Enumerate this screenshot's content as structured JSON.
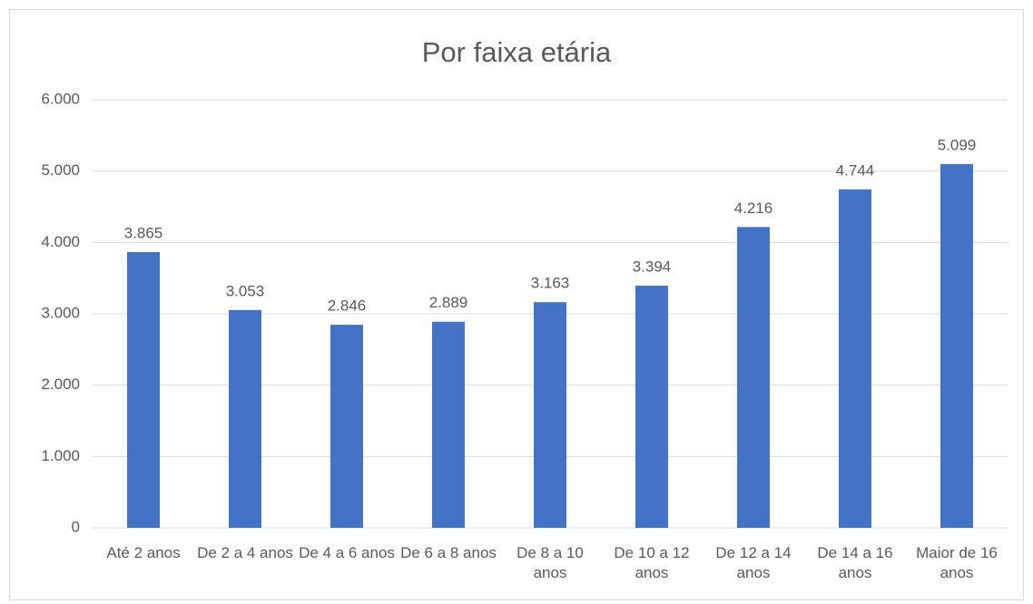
{
  "chart_data": {
    "type": "bar",
    "title": "Por faixa etária",
    "categories": [
      "Até 2 anos",
      "De 2 a 4 anos",
      "De 4 a 6 anos",
      "De 6 a 8 anos",
      "De 8 a 10 anos",
      "De 10 a 12 anos",
      "De 12 a 14 anos",
      "De 14 a 16 anos",
      "Maior de 16 anos"
    ],
    "values": [
      3865,
      3053,
      2846,
      2889,
      3163,
      3394,
      4216,
      4744,
      5099
    ],
    "value_labels": [
      "3.865",
      "3.053",
      "2.846",
      "2.889",
      "3.163",
      "3.394",
      "4.216",
      "4.744",
      "5.099"
    ],
    "color": "#4472c4",
    "ylim": [
      0,
      6000
    ],
    "yticks": [
      0,
      {
        "value": 1000,
        "label": "1.000"
      },
      {
        "value": 2000,
        "label": "2.000"
      },
      {
        "value": 3000,
        "label": "3.000"
      },
      {
        "value": 4000,
        "label": "4.000"
      },
      {
        "value": 5000,
        "label": "5.000"
      },
      {
        "value": 6000,
        "label": "6.000"
      }
    ],
    "grid": true
  }
}
